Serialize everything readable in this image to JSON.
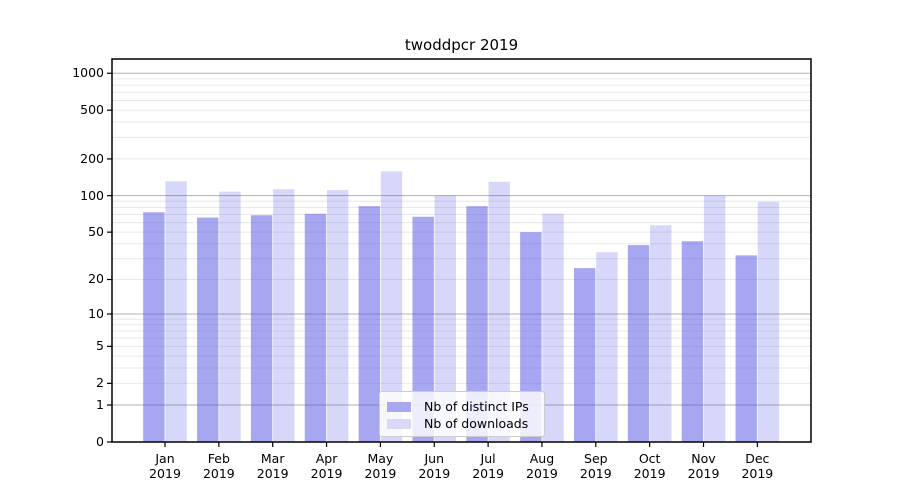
{
  "title": "twoddpcr 2019",
  "chart_data": {
    "type": "bar",
    "title": "twoddpcr 2019",
    "categories": [
      "Jan 2019",
      "Feb 2019",
      "Mar 2019",
      "Apr 2019",
      "May 2019",
      "Jun 2019",
      "Jul 2019",
      "Aug 2019",
      "Sep 2019",
      "Oct 2019",
      "Nov 2019",
      "Dec 2019"
    ],
    "x_tick_line1": [
      "Jan",
      "Feb",
      "Mar",
      "Apr",
      "May",
      "Jun",
      "Jul",
      "Aug",
      "Sep",
      "Oct",
      "Nov",
      "Dec"
    ],
    "x_tick_line2": "2019",
    "series": [
      {
        "name": "Nb of distinct IPs",
        "values": [
          73,
          66,
          69,
          71,
          82,
          67,
          82,
          50,
          25,
          39,
          42,
          32
        ],
        "fill": "rgba(80,80,228,0.5)",
        "legend_color": "#a8a8f0"
      },
      {
        "name": "Nb of downloads",
        "values": [
          131,
          108,
          113,
          111,
          158,
          100,
          130,
          71,
          34,
          57,
          100,
          89
        ],
        "fill": "rgba(80,80,228,0.23)",
        "legend_color": "#d9d9f7"
      }
    ],
    "y_ticks": [
      0,
      1,
      2,
      5,
      10,
      20,
      50,
      100,
      200,
      500,
      1000
    ],
    "y_scale": "log10(value+1)",
    "ylim": [
      0,
      1300
    ],
    "grid": {
      "major_values": [
        1,
        10,
        100,
        1000
      ],
      "major_color": "#b0b0b0",
      "minor_color": "#e8e8e8"
    },
    "legend_position": "lower center inside"
  }
}
